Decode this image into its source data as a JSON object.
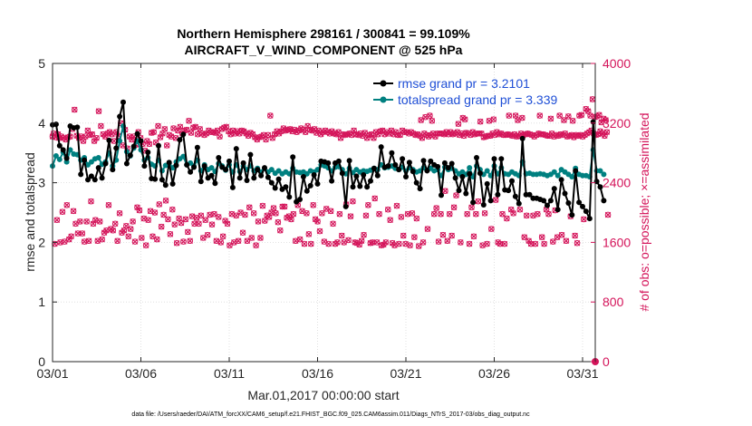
{
  "chart_data": {
    "type": "line",
    "title": "Northern Hemisphere 298161 / 300841 = 99.109%",
    "subtitle": "AIRCRAFT_V_WIND_COMPONENT @ 525 hPa",
    "xlabel": "Mar.01,2017 00:00:00 start",
    "ylabel": "rmse and totalspread",
    "y2label": "# of obs: o=possible; ×=assimilated",
    "footnote": "data file: /Users/raeder/DAI/ATM_forcXX/CAM6_setup/f.e21.FHIST_BGC.f09_025.CAM6assim.011/Diags_NTrS_2017-03/obs_diag_output.nc",
    "xlim": [
      0,
      31.5
    ],
    "ylim": [
      0,
      5
    ],
    "y2lim": [
      0,
      4000
    ],
    "x_ticks": [
      {
        "value": 0,
        "label": "03/01"
      },
      {
        "value": 5,
        "label": "03/06"
      },
      {
        "value": 10,
        "label": "03/11"
      },
      {
        "value": 15,
        "label": "03/16"
      },
      {
        "value": 20,
        "label": "03/21"
      },
      {
        "value": 25,
        "label": "03/26"
      },
      {
        "value": 30,
        "label": "03/31"
      }
    ],
    "y_ticks": [
      "0",
      "1",
      "2",
      "3",
      "4",
      "5"
    ],
    "y2_ticks": [
      "0",
      "800",
      "1600",
      "2400",
      "3200",
      "4000"
    ],
    "legend_position": "top-right",
    "colors": {
      "rmse": "#000000",
      "spread": "#008080",
      "obs": "#d4145a"
    },
    "series": [
      {
        "name": "rmse",
        "legend": "rmse grand pr = 3.2101",
        "values": [
          3.97,
          3.98,
          3.62,
          3.55,
          3.41,
          3.95,
          3.92,
          3.93,
          3.14,
          3.38,
          3.05,
          3.11,
          3.05,
          3.25,
          3.08,
          3.32,
          3.71,
          3.22,
          3.58,
          4.11,
          4.35,
          3.32,
          3.46,
          3.61,
          3.82,
          3.7,
          3.28,
          3.51,
          3.07,
          3.06,
          3.62,
          3.05,
          2.96,
          3.34,
          2.98,
          3.29,
          3.72,
          3.81,
          3.3,
          3.18,
          3.26,
          3.59,
          3.02,
          3.28,
          3.08,
          3.12,
          2.99,
          3.42,
          3.26,
          3.22,
          3.36,
          2.92,
          3.57,
          3.08,
          3.33,
          3.04,
          3.47,
          3.08,
          3.22,
          3.12,
          3.25,
          3.09,
          3.0,
          2.91,
          3.06,
          2.89,
          2.93,
          2.76,
          3.43,
          2.68,
          2.72,
          3.1,
          2.86,
          2.95,
          3.13,
          2.98,
          3.36,
          3.35,
          3.33,
          3.03,
          3.33,
          3.36,
          3.16,
          2.6,
          3.37,
          2.93,
          3.11,
          2.94,
          3.13,
          2.93,
          3.03,
          3.24,
          3.12,
          3.6,
          3.26,
          3.28,
          3.5,
          3.3,
          3.22,
          3.4,
          3.1,
          3.34,
          3.19,
          3.0,
          2.9,
          3.37,
          3.2,
          3.36,
          3.3,
          3.27,
          2.79,
          3.33,
          3.25,
          3.32,
          3.08,
          2.87,
          3.1,
          2.82,
          3.15,
          2.67,
          3.42,
          3.16,
          2.63,
          2.98,
          2.7,
          3.4,
          2.8,
          3.4,
          2.88,
          2.87,
          3.03,
          2.77,
          2.65,
          3.74,
          2.8,
          2.8,
          2.74,
          2.74,
          2.72,
          2.7,
          2.62,
          2.7,
          2.9,
          2.55,
          3.05,
          2.82,
          2.66,
          2.46,
          3.2,
          2.67,
          2.6,
          2.52,
          2.4,
          4.02,
          3.02,
          2.93,
          2.7
        ]
      },
      {
        "name": "totalspread",
        "legend": "totalspread grand pr = 3.339",
        "values": [
          3.28,
          3.45,
          3.39,
          3.51,
          3.35,
          3.55,
          3.48,
          3.47,
          3.38,
          3.42,
          3.3,
          3.35,
          3.4,
          3.42,
          3.31,
          3.35,
          3.5,
          3.28,
          3.38,
          3.7,
          3.95,
          3.52,
          3.45,
          3.58,
          3.7,
          3.55,
          3.38,
          3.42,
          3.31,
          3.28,
          3.38,
          3.2,
          3.29,
          3.32,
          3.25,
          3.35,
          3.4,
          3.44,
          3.3,
          3.33,
          3.28,
          3.38,
          3.2,
          3.3,
          3.22,
          3.25,
          3.19,
          3.32,
          3.28,
          3.21,
          3.3,
          3.18,
          3.3,
          3.19,
          3.28,
          3.22,
          3.28,
          3.2,
          3.24,
          3.18,
          3.24,
          3.18,
          3.22,
          3.16,
          3.2,
          3.15,
          3.18,
          3.15,
          3.24,
          3.18,
          3.17,
          3.18,
          3.15,
          3.2,
          3.18,
          3.22,
          3.3,
          3.28,
          3.25,
          3.2,
          3.26,
          3.27,
          3.22,
          3.15,
          3.24,
          3.17,
          3.22,
          3.18,
          3.2,
          3.19,
          3.21,
          3.24,
          3.22,
          3.3,
          3.25,
          3.26,
          3.28,
          3.24,
          3.22,
          3.26,
          3.2,
          3.25,
          3.22,
          3.18,
          3.2,
          3.25,
          3.21,
          3.24,
          3.2,
          3.22,
          3.12,
          3.26,
          3.22,
          3.24,
          3.2,
          3.15,
          3.18,
          3.14,
          3.25,
          3.1,
          3.28,
          3.22,
          3.14,
          3.2,
          3.12,
          3.28,
          3.15,
          3.25,
          3.15,
          3.14,
          3.18,
          3.15,
          3.12,
          3.35,
          3.15,
          3.16,
          3.14,
          3.14,
          3.15,
          3.14,
          3.12,
          3.14,
          3.18,
          3.12,
          3.22,
          3.18,
          3.14,
          3.1,
          3.24,
          3.14,
          3.12,
          3.12,
          3.1,
          3.55,
          3.2,
          3.2,
          3.14
        ]
      }
    ],
    "obs_possible": [
      3020,
      3060,
      1580,
      3010,
      1900,
      3050,
      3000,
      1600,
      3020,
      2010,
      3000,
      1610,
      2980,
      2100,
      3010,
      1640,
      3020,
      1680,
      3120,
      2020,
      3380,
      1850,
      3030,
      1720,
      3000,
      1880,
      3020,
      1720,
      2960,
      1610,
      3020,
      1880,
      3100,
      1620,
      3040,
      2150,
      3050,
      1850,
      2960,
      1900,
      3000,
      1620,
      3360,
      1880,
      3160,
      1640,
      3050,
      1730,
      3020,
      1760,
      3060,
      2100,
      3080,
      1780,
      3050,
      1760,
      2960,
      1850,
      3080,
      1620,
      3030,
      1990,
      3200,
      1730,
      2900,
      1760,
      3110,
      1820,
      2860,
      1680,
      3020,
      1780,
      2980,
      1880,
      3020,
      1610,
      2910,
      2070,
      3080,
      2030,
      3000,
      1660,
      2920,
      1920,
      2830,
      1560,
      2960,
      1900,
      2920,
      2020,
      3070,
      1680,
      3080,
      2000,
      2940,
      1640,
      3160,
      2110,
      3010,
      1810,
      3060,
      1970,
      3120,
      2160,
      2900,
      1910,
      3040,
      1710,
      3020,
      2040,
      3130,
      1840,
      3000,
      1590,
      3100,
      1920,
      3150,
      1860,
      3060,
      1610,
      3100,
      1910,
      3110,
      1740,
      3230,
      1620,
      3070,
      1950,
      3140,
      1850,
      3150,
      1930,
      3050,
      1850,
      3120,
      1960,
      3060,
      1660,
      3040,
      1900,
      3060,
      1700,
      3100,
      1970,
      3080,
      1840,
      3080,
      1980,
      3070,
      1620,
      3100,
      1940,
      3020,
      1600,
      3120,
      1680,
      3140,
      1890,
      3150,
      1850,
      3090,
      1560,
      3050,
      1980,
      3100,
      1600,
      3060,
      1960,
      3090,
      1620,
      3060,
      2000,
      3100,
      1730,
      3090,
      1970,
      3060,
      1620,
      3030,
      2070,
      3070,
      1660,
      3050,
      1990,
      3010,
      1560,
      2980,
      1880,
      3010,
      1660,
      3020,
      2090,
      3040,
      1890,
      2980,
      1960,
      3040,
      1940,
      3300,
      2000,
      3000,
      2060,
      3050,
      1990,
      3090,
      1870,
      3060,
      1760,
      3090,
      2080,
      3130,
      2080,
      3100,
      1930,
      3110,
      1950,
      3120,
      1910,
      3090,
      1980,
      3110,
      1620,
      3080,
      2100,
      3100,
      1640,
      3130,
      2020,
      3110,
      1580,
      3080,
      1990,
      3160,
      1710,
      3110,
      1580,
      3100,
      2100,
      3120,
      1910,
      3070,
      1880,
      3100,
      1750,
      3050,
      1990,
      3080,
      1610,
      3100,
      2050,
      3080,
      1580,
      3060,
      2020,
      3090,
      1850,
      3060,
      1580,
      3050,
      1600,
      3080,
      1980,
      3000,
      1690,
      3050,
      1600,
      3040,
      2110,
      3050,
      1630,
      3060,
      1950,
      3040,
      2150,
      3100,
      1600,
      3050,
      1590,
      3040,
      1570,
      3060,
      1620,
      3030,
      1700,
      3070,
      1960,
      3000,
      2100,
      3040,
      1590,
      3050,
      1600,
      3000,
      2190,
      3080,
      1600,
      3050,
      1980,
      3090,
      1560,
      3100,
      1570,
      3050,
      1600,
      3080,
      2040,
      3060,
      1900,
      3100,
      1590,
      3050,
      1560,
      3080,
      2090,
      3040,
      1580,
      3040,
      1940,
      3100,
      1690,
      3080,
      1580,
      3080,
      1980,
      3060,
      1560,
      3080,
      1990,
      3060,
      1670,
      3040,
      1920,
      3050,
      1550,
      3030,
      3240,
      3000,
      1600,
      3060,
      3280,
      3040,
      1780,
      3020,
      3300,
      3040,
      3230,
      3060,
      1980,
      3020,
      2060,
      3060,
      1610,
      3060,
      1980,
      3060,
      1700,
      3050,
      2290,
      3080,
      1620,
      3050,
      1980,
      3080,
      1690,
      3050,
      2070,
      3060,
      2230,
      3080,
      3190,
      3040,
      1600,
      3060,
      3270,
      3030,
      3250,
      3070,
      1980,
      3060,
      1580,
      3040,
      2070,
      3080,
      1680,
      3050,
      1980,
      3060,
      2150,
      3060,
      3220,
      3060,
      1560,
      3010,
      1990,
      3020,
      1580,
      3030,
      3230,
      3030,
      1780,
      3060,
      3250,
      3040,
      2170,
      3080,
      1600,
      3050,
      1580,
      3060,
      1980,
      3040,
      1580,
      3040,
      1920,
      3050,
      3300,
      3040,
      2040,
      3030,
      1990,
      3050,
      3300,
      3020,
      3240,
      3030,
      2040,
      3060,
      3270,
      3040,
      1670,
      3050,
      1960,
      3060,
      1620,
      3050,
      1580,
      3040,
      1960,
      3020,
      1580,
      3040,
      1980,
      3060,
      3300,
      3050,
      1670,
      3050,
      1580,
      3040,
      2040,
      3030,
      1980,
      3030,
      3260,
      3060,
      1610,
      3020,
      2030,
      3040,
      1670,
      3030,
      3300,
      3050,
      1700,
      3040,
      3240,
      3060,
      1620,
      3020,
      3290,
      3030,
      1950,
      3040,
      3230,
      3010,
      1690,
      3040,
      1590,
      3030,
      3300,
      3040,
      3310,
      3020,
      1910,
      3040,
      3390,
      3060,
      3360,
      3080,
      3300,
      3100,
      3520,
      3060,
      3280,
      3040,
      3290,
      3050,
      3310,
      3090,
      3210,
      3060,
      3260,
      3030,
      3240,
      3080,
      1970
    ],
    "obs_assimilated": [
      3020,
      3060,
      1580,
      3010,
      1900,
      3050,
      3000,
      1600,
      3020,
      2010,
      3000,
      1610,
      2980,
      2100,
      3010,
      1640,
      3020,
      1680,
      3120,
      2020,
      3380,
      1850,
      3030,
      1720,
      3000,
      1880,
      3020,
      1720,
      2960,
      1610,
      3020,
      1880,
      3100,
      1620,
      3040,
      2150,
      3050,
      1850,
      2960,
      1900,
      3000,
      1620,
      3360,
      1880,
      3160,
      1640,
      3050,
      1730,
      3020,
      1760,
      3060,
      2100,
      3080,
      1780,
      3050,
      1760,
      2960,
      1850,
      3080,
      1620,
      3030,
      1990,
      3200,
      1730,
      2900,
      1760,
      3110,
      1820,
      2860,
      1680,
      3020,
      1780,
      2980,
      1880,
      3020,
      1610,
      2910,
      2070,
      3080,
      2030,
      3000,
      1660,
      2920,
      1920,
      2830,
      1560,
      2960,
      1900,
      2920,
      2020,
      3070,
      1680,
      3080,
      2000,
      2940,
      1640,
      3160,
      2110,
      3010,
      1810,
      3060,
      1970,
      3120,
      2160,
      2900,
      1910,
      3040,
      1710,
      3020,
      2040,
      3130,
      1840,
      3000,
      1590,
      3100,
      1920,
      3150,
      1860,
      3060,
      1610,
      3100,
      1910,
      3110,
      1740,
      3230,
      1620,
      3070,
      1950,
      3140,
      1850,
      3150,
      1930,
      3050,
      1850,
      3120,
      1960,
      3060,
      1660,
      3040,
      1900,
      3060,
      1700,
      3100,
      1970,
      3080,
      1840,
      3080,
      1980,
      3070,
      1620,
      3100,
      1940,
      3020,
      1600,
      3120,
      1680,
      3140,
      1890,
      3150,
      1850,
      3090,
      1560,
      3050,
      1980,
      3100,
      1600,
      3060,
      1960,
      3090,
      1620,
      3060,
      2000,
      3100,
      1730,
      3090,
      1970,
      3060,
      1620,
      3030,
      2070,
      3070,
      1660,
      3050,
      1990,
      3010,
      1560,
      2980,
      1880,
      3010,
      1660,
      3020,
      2090,
      3040,
      1890,
      2980,
      1960,
      3040,
      1940,
      3300,
      2000,
      3000,
      2060,
      3050,
      1990,
      3090,
      1870,
      3060,
      1760,
      3090,
      2080,
      3130,
      2080,
      3100,
      1930,
      3110,
      1950,
      3120,
      1910,
      3090,
      1980,
      3110,
      1620,
      3080,
      2100,
      3100,
      1640,
      3130,
      2020,
      3110,
      1580,
      3080,
      1990,
      3160,
      1710,
      3110,
      1580,
      3100,
      2100,
      3120,
      1910,
      3070,
      1880,
      3100,
      1750,
      3050,
      1990,
      3080,
      1610,
      3100,
      2050,
      3080,
      1580,
      3060,
      2020,
      3090,
      1850,
      3060,
      1580,
      3050,
      1600,
      3080,
      1980,
      3000,
      1690,
      3050,
      1600,
      3040,
      2110,
      3050,
      1630,
      3060,
      1950,
      3040,
      2150,
      3100,
      1600,
      3050,
      1590,
      3040,
      1570,
      3060,
      1620,
      3030,
      1700,
      3070,
      1960,
      3000,
      2100,
      3040,
      1590,
      3050,
      1600,
      3000,
      2190,
      3080,
      1600,
      3050,
      1980,
      3090,
      1560,
      3100,
      1570,
      3050,
      1600,
      3080,
      2040,
      3060,
      1900,
      3100,
      1590,
      3050,
      1560,
      3080,
      2090,
      3040,
      1580,
      3040,
      1940,
      3100,
      1690,
      3080,
      1580,
      3080,
      1980,
      3060,
      1560,
      3080,
      1990,
      3060,
      1670,
      3040,
      1920,
      3050,
      1550,
      3030,
      3240,
      3000,
      1600,
      3060,
      3280,
      3040,
      1780,
      3020,
      3300,
      3040,
      3230,
      3060,
      1980,
      3020,
      2060,
      3060,
      1610,
      3060,
      1980,
      3060,
      1700,
      3050,
      2290,
      3080,
      1620,
      3050,
      1980,
      3080,
      1690,
      3050,
      2070,
      3060,
      2230,
      3080,
      3190,
      3040,
      1600,
      3060,
      3270,
      3030,
      3250,
      3070,
      1980,
      3060,
      1580,
      3040,
      2070,
      3080,
      1680,
      3050,
      1980,
      3060,
      2150,
      3060,
      3220,
      3060,
      1560,
      3010,
      1990,
      3020,
      1580,
      3030,
      3230,
      3030,
      1780,
      3060,
      3250,
      3040,
      2170,
      3080,
      1600,
      3050,
      1580,
      3060,
      1980,
      3040,
      1580,
      3040,
      1920,
      3050,
      3300,
      3040,
      2040,
      3030,
      1990,
      3050,
      3300,
      3020,
      3240,
      3030,
      2040,
      3060,
      3270,
      3040,
      1670,
      3050,
      1960,
      3060,
      1620,
      3050,
      1580,
      3040,
      1960,
      3020,
      1580,
      3040,
      1980,
      3060,
      3300,
      3050,
      1670,
      3050,
      1580,
      3040,
      2040,
      3030,
      1980,
      3030,
      3260,
      3060,
      1610,
      3020,
      2030,
      3040,
      1670,
      3030,
      3300,
      3050,
      1700,
      3040,
      3240,
      3060,
      1620,
      3020,
      3290,
      3030,
      1950,
      3040,
      3230,
      3010,
      1690,
      3040,
      1590,
      3030,
      3300,
      3040,
      3310,
      3020,
      1910,
      3040,
      3390,
      3060,
      3360,
      3080,
      3300,
      3100,
      3520,
      3060,
      3280,
      3040,
      3290,
      3050,
      3310,
      3090,
      3210,
      3060,
      3260,
      3030,
      3240,
      3080,
      1970
    ]
  }
}
